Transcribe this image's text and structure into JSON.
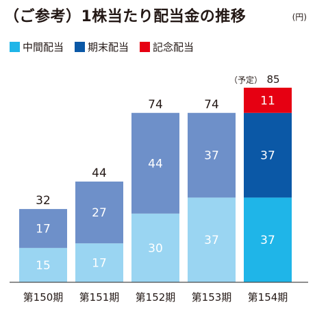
{
  "header": {
    "title": "（ご参考）1株当たり配当金の推移",
    "unit": "(円)"
  },
  "legend": [
    {
      "label": "中間配当",
      "color": "#1fb5e8"
    },
    {
      "label": "期末配当",
      "color": "#0b58a6"
    },
    {
      "label": "記念配当",
      "color": "#e60012"
    }
  ],
  "colors": {
    "interim_past": "#9ad5f2",
    "yearend_past": "#6e90c9",
    "interim_current": "#1fb5e8",
    "yearend_current": "#0b58a6",
    "commemorative": "#e60012",
    "axis": "#4a4a4a",
    "label_light": "#ffffff",
    "label_dark": "#231815"
  },
  "chart_data": {
    "type": "bar",
    "stacked": true,
    "categories": [
      "第150期",
      "第151期",
      "第152期",
      "第153期",
      "第154期"
    ],
    "series": [
      {
        "name": "中間配当",
        "values": [
          15,
          17,
          30,
          37,
          37
        ]
      },
      {
        "name": "期末配当",
        "values": [
          17,
          27,
          44,
          37,
          37
        ]
      },
      {
        "name": "記念配当",
        "values": [
          0,
          0,
          0,
          0,
          11
        ]
      }
    ],
    "totals": [
      "32",
      "44",
      "74",
      "74",
      "85"
    ],
    "total_prefix": [
      "",
      "",
      "",
      "",
      "（予定）"
    ],
    "ylim": [
      0,
      85
    ],
    "grid": false,
    "legend_position": "top-left"
  }
}
